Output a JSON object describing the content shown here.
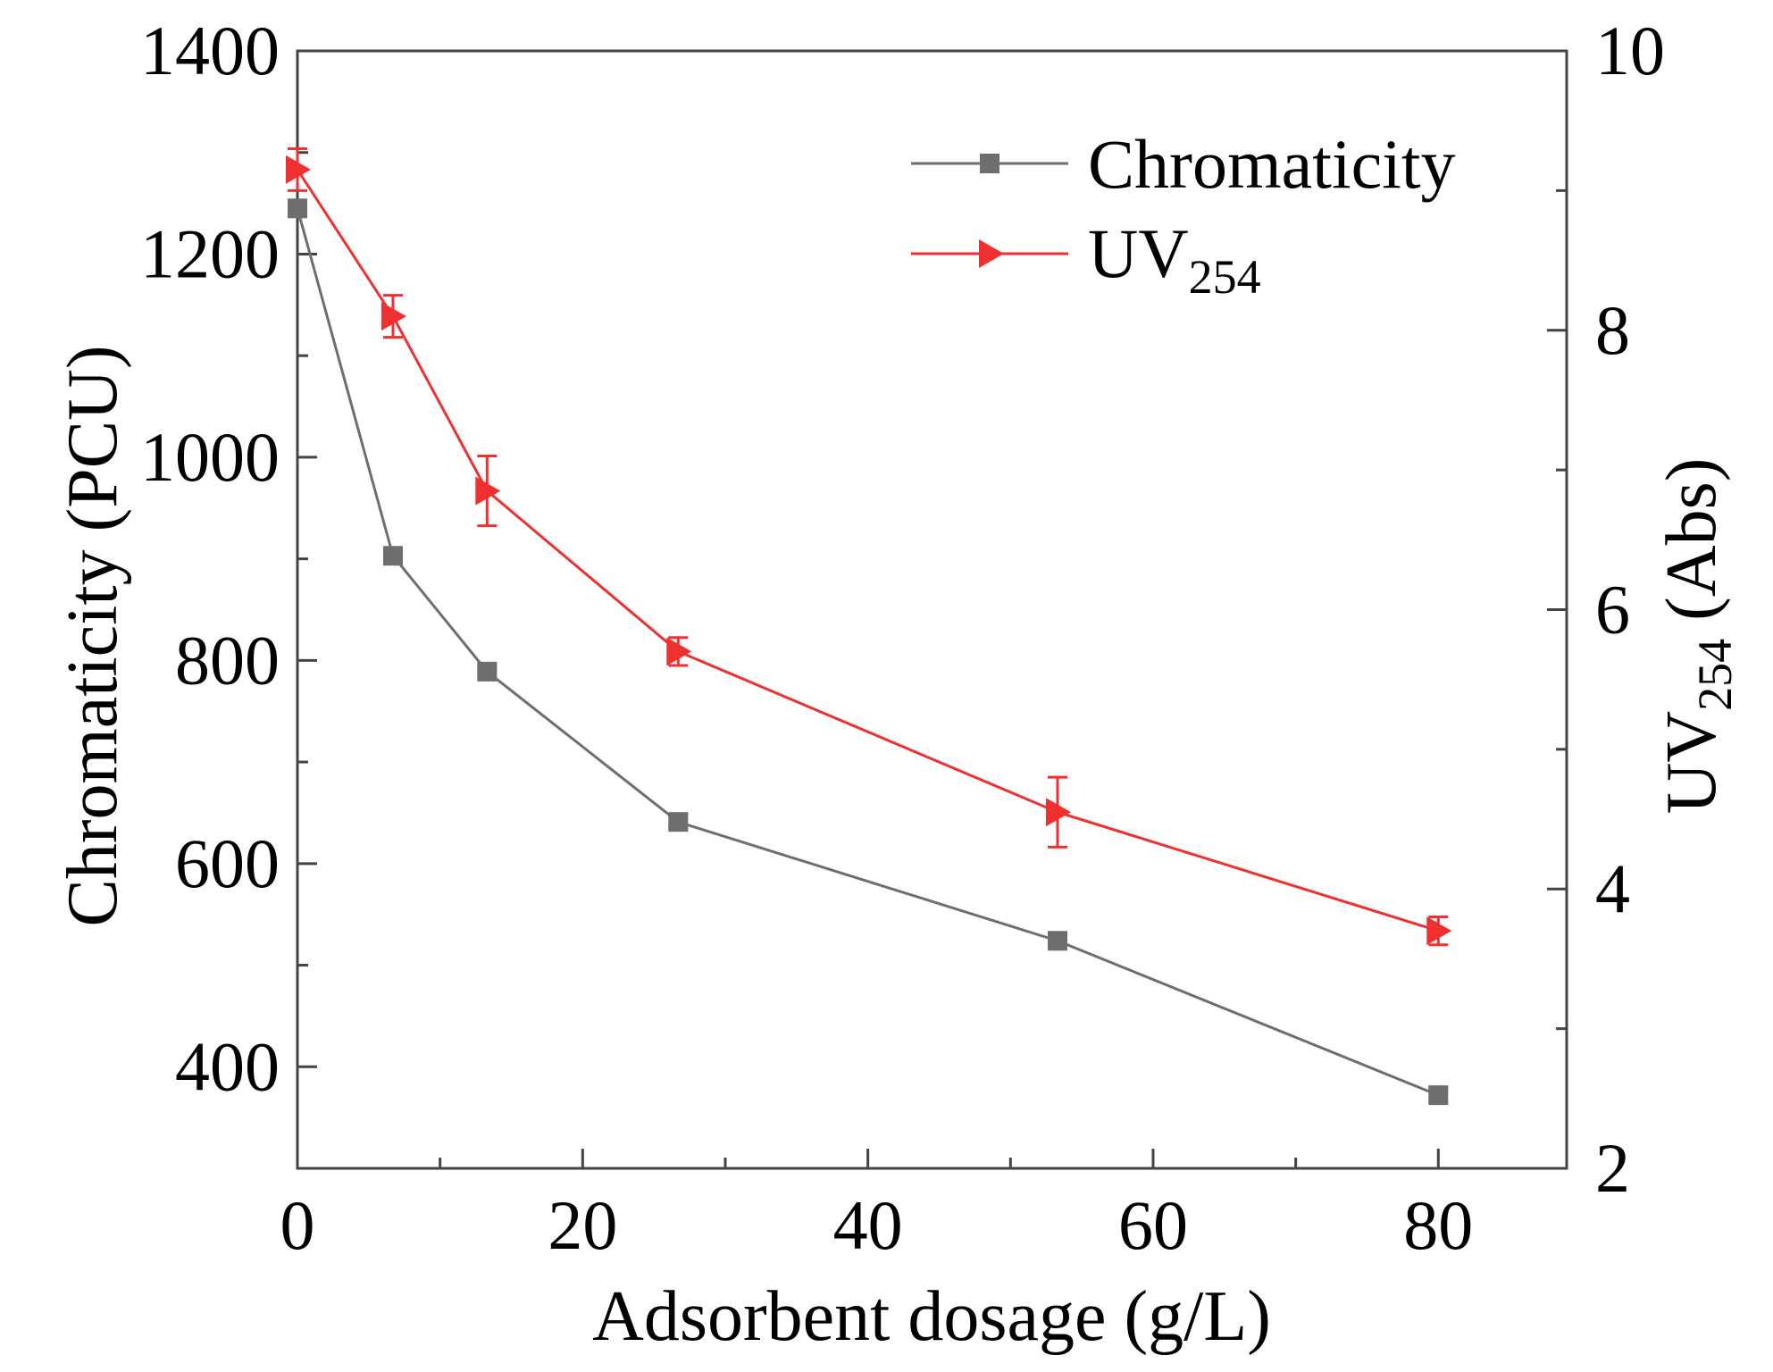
{
  "chart_data": {
    "type": "line",
    "x_label": "Adsorbent dosage (g/L)",
    "y_left_label": "Chromaticity (PCU)",
    "y_right_label": {
      "main": "UV",
      "sub": "254",
      "rest": " (Abs)"
    },
    "x_range": [
      0,
      89
    ],
    "y_left_range": [
      300,
      1400
    ],
    "y_right_range": [
      2,
      10
    ],
    "x_ticks": [
      0,
      20,
      40,
      60,
      80
    ],
    "x_minor_ticks": [
      10,
      30,
      50,
      70
    ],
    "y_left_ticks": [
      400,
      600,
      800,
      1000,
      1200,
      1400
    ],
    "y_left_minor_ticks": [
      500,
      700,
      900,
      1100,
      1300
    ],
    "y_right_ticks": [
      2,
      4,
      6,
      8,
      10
    ],
    "y_right_minor_ticks": [
      3,
      5,
      7,
      9
    ],
    "x_tick_labels": [
      "0",
      "20",
      "40",
      "60",
      "80"
    ],
    "y_left_tick_labels": [
      "400",
      "600",
      "800",
      "1000",
      "1200",
      "1400"
    ],
    "y_right_tick_labels": [
      "2",
      "4",
      "6",
      "8",
      "10"
    ],
    "legend_position": "top-right",
    "series": [
      {
        "name": "Chromaticity",
        "axis": "left",
        "color": "#6e6e6e",
        "marker": "square",
        "x": [
          0,
          6.7,
          13.3,
          26.7,
          53.3,
          80
        ],
        "y": [
          1245,
          903,
          789,
          641,
          524,
          372
        ],
        "error": [
          6,
          6,
          6,
          6,
          5,
          7
        ]
      },
      {
        "name": {
          "main": "UV",
          "sub": "254"
        },
        "axis": "right",
        "color": "#ef3030",
        "marker": "triangle-right",
        "x": [
          0,
          6.7,
          13.3,
          26.7,
          53.3,
          80
        ],
        "y": [
          9.15,
          8.1,
          6.85,
          5.7,
          4.55,
          3.7
        ],
        "error": [
          0.15,
          0.15,
          0.25,
          0.1,
          0.25,
          0.1
        ]
      }
    ]
  }
}
